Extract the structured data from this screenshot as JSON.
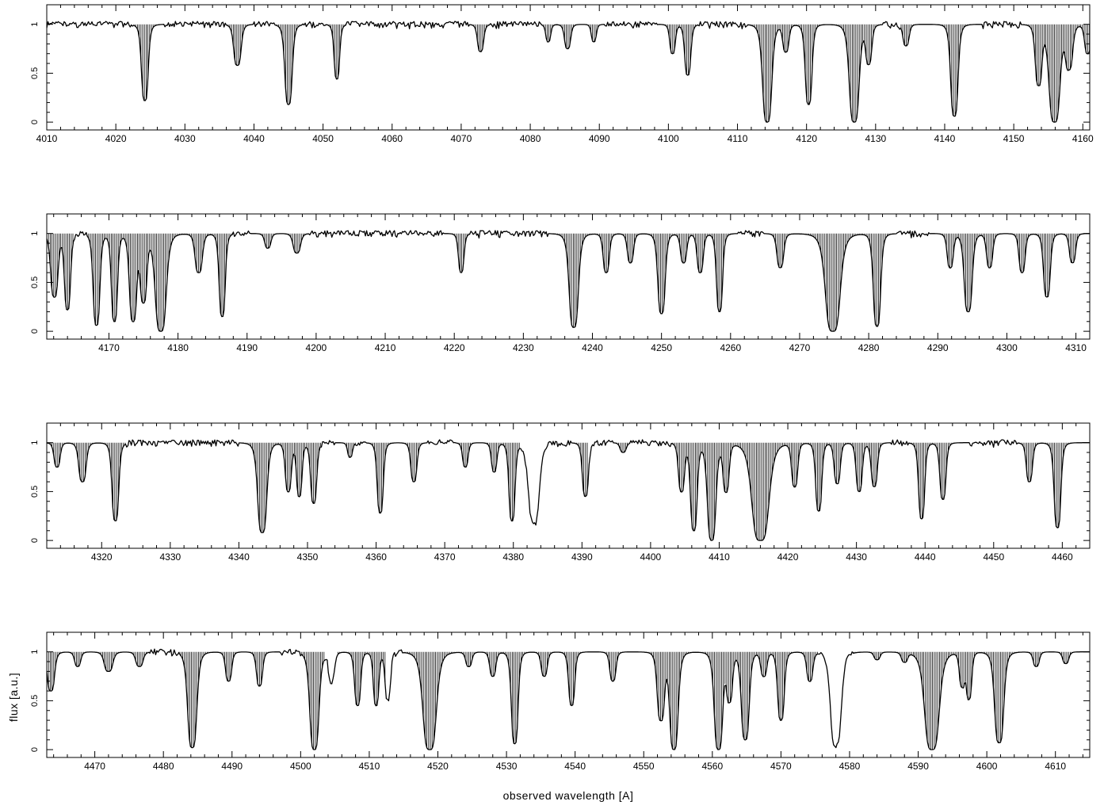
{
  "chart_data": {
    "type": "line",
    "xlabel": "observed wavelength [A]",
    "ylabel": "flux [a.u.]",
    "grid": false,
    "legend": "none",
    "colors": {
      "line": "#000000",
      "hatch": "#000000",
      "frame": "#000000"
    },
    "panels": [
      {
        "xlim": [
          4010,
          4161
        ],
        "ylim": [
          -0.08,
          1.2
        ],
        "xticks": [
          4010,
          4020,
          4030,
          4040,
          4050,
          4060,
          4070,
          4080,
          4090,
          4100,
          4110,
          4120,
          4130,
          4140,
          4150,
          4160
        ],
        "yticks": [
          0,
          0.5,
          1
        ],
        "ytick_labels": [
          "0",
          "0.5",
          "1"
        ],
        "lines": [
          {
            "center": 4024.2,
            "depth": 0.78,
            "width": 0.55
          },
          {
            "center": 4037.6,
            "depth": 0.42,
            "width": 0.6
          },
          {
            "center": 4045.0,
            "depth": 0.82,
            "width": 0.6
          },
          {
            "center": 4052.0,
            "depth": 0.56,
            "width": 0.45
          },
          {
            "center": 4072.8,
            "depth": 0.28,
            "width": 0.5
          },
          {
            "center": 4082.6,
            "depth": 0.18,
            "width": 0.4
          },
          {
            "center": 4085.4,
            "depth": 0.25,
            "width": 0.5
          },
          {
            "center": 4089.2,
            "depth": 0.18,
            "width": 0.4
          },
          {
            "center": 4100.6,
            "depth": 0.3,
            "width": 0.45
          },
          {
            "center": 4102.8,
            "depth": 0.52,
            "width": 0.5
          },
          {
            "center": 4114.3,
            "depth": 1.0,
            "width": 0.75
          },
          {
            "center": 4117.0,
            "depth": 0.28,
            "width": 0.5
          },
          {
            "center": 4120.3,
            "depth": 0.82,
            "width": 0.55
          },
          {
            "center": 4126.9,
            "depth": 1.0,
            "width": 0.8
          },
          {
            "center": 4129.0,
            "depth": 0.4,
            "width": 0.5
          },
          {
            "center": 4134.4,
            "depth": 0.22,
            "width": 0.5
          },
          {
            "center": 4141.4,
            "depth": 0.94,
            "width": 0.6
          },
          {
            "center": 4153.6,
            "depth": 0.62,
            "width": 0.55
          },
          {
            "center": 4155.9,
            "depth": 1.0,
            "width": 0.9
          },
          {
            "center": 4158.0,
            "depth": 0.45,
            "width": 0.6
          },
          {
            "center": 4160.7,
            "depth": 0.3,
            "width": 0.5
          }
        ],
        "masks": [
          [
            4022.5,
            4026.8
          ],
          [
            4036.0,
            4039.8
          ],
          [
            4043.0,
            4047.0
          ],
          [
            4050.3,
            4053.3
          ],
          [
            4071.2,
            4074.2
          ],
          [
            4081.5,
            4090.8
          ],
          [
            4098.5,
            4104.2
          ],
          [
            4111.5,
            4131.0
          ],
          [
            4133.5,
            4145.5
          ],
          [
            4151.0,
            4161.0
          ]
        ]
      },
      {
        "xlim": [
          4161,
          4312
        ],
        "ylim": [
          -0.08,
          1.2
        ],
        "xticks": [
          4170,
          4180,
          4190,
          4200,
          4210,
          4220,
          4230,
          4240,
          4250,
          4260,
          4270,
          4280,
          4290,
          4300,
          4310
        ],
        "yticks": [
          0,
          0.5,
          1
        ],
        "ytick_labels": [
          "0",
          "0.5",
          "1"
        ],
        "lines": [
          {
            "center": 4162.1,
            "depth": 0.65,
            "width": 0.6
          },
          {
            "center": 4164.0,
            "depth": 0.78,
            "width": 0.5
          },
          {
            "center": 4168.2,
            "depth": 0.94,
            "width": 0.55
          },
          {
            "center": 4170.8,
            "depth": 0.9,
            "width": 0.5
          },
          {
            "center": 4173.5,
            "depth": 0.9,
            "width": 0.6
          },
          {
            "center": 4175.0,
            "depth": 0.7,
            "width": 0.55
          },
          {
            "center": 4177.5,
            "depth": 1.0,
            "width": 0.9
          },
          {
            "center": 4183.0,
            "depth": 0.4,
            "width": 0.6
          },
          {
            "center": 4186.4,
            "depth": 0.85,
            "width": 0.5
          },
          {
            "center": 4193.0,
            "depth": 0.15,
            "width": 0.5
          },
          {
            "center": 4197.2,
            "depth": 0.2,
            "width": 0.6
          },
          {
            "center": 4221.0,
            "depth": 0.4,
            "width": 0.45
          },
          {
            "center": 4237.3,
            "depth": 0.96,
            "width": 0.75
          },
          {
            "center": 4242.0,
            "depth": 0.4,
            "width": 0.5
          },
          {
            "center": 4245.5,
            "depth": 0.3,
            "width": 0.5
          },
          {
            "center": 4250.0,
            "depth": 0.82,
            "width": 0.6
          },
          {
            "center": 4253.2,
            "depth": 0.3,
            "width": 0.5
          },
          {
            "center": 4255.6,
            "depth": 0.4,
            "width": 0.5
          },
          {
            "center": 4258.4,
            "depth": 0.8,
            "width": 0.5
          },
          {
            "center": 4267.2,
            "depth": 0.35,
            "width": 0.55
          },
          {
            "center": 4274.8,
            "depth": 1.0,
            "width": 1.2
          },
          {
            "center": 4281.2,
            "depth": 0.95,
            "width": 0.6
          },
          {
            "center": 4291.8,
            "depth": 0.35,
            "width": 0.5
          },
          {
            "center": 4294.4,
            "depth": 0.8,
            "width": 0.65
          },
          {
            "center": 4297.5,
            "depth": 0.35,
            "width": 0.5
          },
          {
            "center": 4302.2,
            "depth": 0.4,
            "width": 0.5
          },
          {
            "center": 4305.8,
            "depth": 0.65,
            "width": 0.55
          },
          {
            "center": 4309.5,
            "depth": 0.3,
            "width": 0.5
          }
        ],
        "masks": [
          [
            4161.0,
            4165.0
          ],
          [
            4166.8,
            4188.0
          ],
          [
            4190.5,
            4199.0
          ],
          [
            4218.5,
            4222.3
          ],
          [
            4233.5,
            4261.0
          ],
          [
            4264.8,
            4284.0
          ],
          [
            4289.0,
            4312.0
          ]
        ]
      },
      {
        "xlim": [
          4312,
          4464
        ],
        "ylim": [
          -0.08,
          1.2
        ],
        "xticks": [
          4320,
          4330,
          4340,
          4350,
          4360,
          4370,
          4380,
          4390,
          4400,
          4410,
          4420,
          4430,
          4440,
          4450,
          4460
        ],
        "yticks": [
          0,
          0.5,
          1
        ],
        "ytick_labels": [
          "0",
          "0.5",
          "1"
        ],
        "lines": [
          {
            "center": 4313.5,
            "depth": 0.25,
            "width": 0.5
          },
          {
            "center": 4317.2,
            "depth": 0.4,
            "width": 0.6
          },
          {
            "center": 4322.0,
            "depth": 0.8,
            "width": 0.55
          },
          {
            "center": 4343.4,
            "depth": 0.92,
            "width": 0.75
          },
          {
            "center": 4347.2,
            "depth": 0.5,
            "width": 0.5
          },
          {
            "center": 4348.8,
            "depth": 0.55,
            "width": 0.45
          },
          {
            "center": 4350.9,
            "depth": 0.62,
            "width": 0.5
          },
          {
            "center": 4356.2,
            "depth": 0.15,
            "width": 0.4
          },
          {
            "center": 4360.6,
            "depth": 0.72,
            "width": 0.5
          },
          {
            "center": 4365.5,
            "depth": 0.4,
            "width": 0.5
          },
          {
            "center": 4373.0,
            "depth": 0.25,
            "width": 0.45
          },
          {
            "center": 4377.2,
            "depth": 0.3,
            "width": 0.45
          },
          {
            "center": 4379.8,
            "depth": 0.8,
            "width": 0.5
          },
          {
            "center": 4383.0,
            "depth": 0.82,
            "width": 0.9
          },
          {
            "center": 4390.5,
            "depth": 0.55,
            "width": 0.5
          },
          {
            "center": 4396.0,
            "depth": 0.1,
            "width": 0.5
          },
          {
            "center": 4404.5,
            "depth": 0.5,
            "width": 0.5
          },
          {
            "center": 4406.3,
            "depth": 0.9,
            "width": 0.55
          },
          {
            "center": 4408.9,
            "depth": 1.0,
            "width": 0.7
          },
          {
            "center": 4411.0,
            "depth": 0.5,
            "width": 0.5
          },
          {
            "center": 4416.0,
            "depth": 1.0,
            "width": 1.4
          },
          {
            "center": 4421.0,
            "depth": 0.45,
            "width": 0.5
          },
          {
            "center": 4424.5,
            "depth": 0.7,
            "width": 0.5
          },
          {
            "center": 4427.2,
            "depth": 0.42,
            "width": 0.5
          },
          {
            "center": 4430.4,
            "depth": 0.5,
            "width": 0.5
          },
          {
            "center": 4432.6,
            "depth": 0.45,
            "width": 0.5
          },
          {
            "center": 4439.5,
            "depth": 0.78,
            "width": 0.5
          },
          {
            "center": 4442.6,
            "depth": 0.58,
            "width": 0.5
          },
          {
            "center": 4455.2,
            "depth": 0.4,
            "width": 0.5
          },
          {
            "center": 4459.3,
            "depth": 0.87,
            "width": 0.55
          }
        ],
        "masks": [
          [
            4312.0,
            4323.5
          ],
          [
            4340.0,
            4352.0
          ],
          [
            4354.0,
            4357.0
          ],
          [
            4358.5,
            4367.5
          ],
          [
            4371.5,
            4381.0
          ],
          [
            4388.5,
            4391.0
          ],
          [
            4394.5,
            4397.0
          ],
          [
            4403.0,
            4435.0
          ],
          [
            4437.5,
            4446.5
          ],
          [
            4453.5,
            4464.0
          ]
        ]
      },
      {
        "xlim": [
          4463,
          4615
        ],
        "ylim": [
          -0.08,
          1.2
        ],
        "xticks": [
          4470,
          4480,
          4490,
          4500,
          4510,
          4520,
          4530,
          4540,
          4550,
          4560,
          4570,
          4580,
          4590,
          4600,
          4610
        ],
        "yticks": [
          0,
          0.5,
          1
        ],
        "ytick_labels": [
          "0",
          "0.5",
          "1"
        ],
        "lines": [
          {
            "center": 4463.6,
            "depth": 0.4,
            "width": 0.6
          },
          {
            "center": 4467.5,
            "depth": 0.15,
            "width": 0.5
          },
          {
            "center": 4472.0,
            "depth": 0.2,
            "width": 0.7
          },
          {
            "center": 4476.5,
            "depth": 0.15,
            "width": 0.6
          },
          {
            "center": 4484.2,
            "depth": 0.98,
            "width": 0.75
          },
          {
            "center": 4489.5,
            "depth": 0.3,
            "width": 0.5
          },
          {
            "center": 4494.0,
            "depth": 0.35,
            "width": 0.5
          },
          {
            "center": 4502.0,
            "depth": 1.0,
            "width": 0.75
          },
          {
            "center": 4504.5,
            "depth": 0.3,
            "width": 0.5
          },
          {
            "center": 4508.3,
            "depth": 0.55,
            "width": 0.5
          },
          {
            "center": 4511.0,
            "depth": 0.55,
            "width": 0.45
          },
          {
            "center": 4512.7,
            "depth": 0.5,
            "width": 0.45
          },
          {
            "center": 4518.8,
            "depth": 1.0,
            "width": 1.1
          },
          {
            "center": 4524.5,
            "depth": 0.15,
            "width": 0.5
          },
          {
            "center": 4528.0,
            "depth": 0.25,
            "width": 0.5
          },
          {
            "center": 4531.2,
            "depth": 0.94,
            "width": 0.55
          },
          {
            "center": 4535.5,
            "depth": 0.25,
            "width": 0.5
          },
          {
            "center": 4539.5,
            "depth": 0.55,
            "width": 0.5
          },
          {
            "center": 4545.5,
            "depth": 0.3,
            "width": 0.5
          },
          {
            "center": 4552.5,
            "depth": 0.7,
            "width": 0.6
          },
          {
            "center": 4554.4,
            "depth": 1.0,
            "width": 0.7
          },
          {
            "center": 4560.9,
            "depth": 1.0,
            "width": 0.7
          },
          {
            "center": 4562.5,
            "depth": 0.5,
            "width": 0.5
          },
          {
            "center": 4564.8,
            "depth": 0.9,
            "width": 0.65
          },
          {
            "center": 4567.5,
            "depth": 0.25,
            "width": 0.5
          },
          {
            "center": 4570.0,
            "depth": 0.7,
            "width": 0.55
          },
          {
            "center": 4574.2,
            "depth": 0.3,
            "width": 0.5
          },
          {
            "center": 4578.0,
            "depth": 0.96,
            "width": 0.9
          },
          {
            "center": 4584.0,
            "depth": 0.08,
            "width": 0.5
          },
          {
            "center": 4588.0,
            "depth": 0.1,
            "width": 0.5
          },
          {
            "center": 4592.0,
            "depth": 1.0,
            "width": 1.2
          },
          {
            "center": 4596.4,
            "depth": 0.35,
            "width": 0.45
          },
          {
            "center": 4597.4,
            "depth": 0.48,
            "width": 0.45
          },
          {
            "center": 4601.8,
            "depth": 0.93,
            "width": 0.75
          },
          {
            "center": 4607.2,
            "depth": 0.15,
            "width": 0.5
          },
          {
            "center": 4611.5,
            "depth": 0.12,
            "width": 0.5
          }
        ],
        "masks": [
          [
            4463.0,
            4478.0
          ],
          [
            4482.3,
            4497.0
          ],
          [
            4500.0,
            4503.5
          ],
          [
            4505.2,
            4512.5
          ],
          [
            4515.0,
            4575.5
          ],
          [
            4580.5,
            4615.0
          ]
        ]
      }
    ]
  }
}
